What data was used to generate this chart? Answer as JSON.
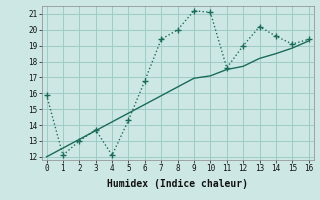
{
  "title": "",
  "xlabel": "Humidex (Indice chaleur)",
  "background_color": "#cde8e4",
  "grid_color": "#9fccc7",
  "line_color": "#1a6b5a",
  "x_data": [
    0,
    1,
    2,
    3,
    4,
    5,
    6,
    7,
    8,
    9,
    10,
    11,
    12,
    13,
    14,
    15,
    16
  ],
  "y_curve": [
    15.9,
    12.1,
    13.0,
    13.7,
    12.1,
    14.3,
    16.8,
    19.4,
    20.0,
    21.2,
    21.1,
    17.6,
    19.0,
    20.2,
    19.6,
    19.1,
    19.4
  ],
  "y_linear": [
    12.0,
    12.55,
    13.1,
    13.65,
    14.2,
    14.75,
    15.3,
    15.85,
    16.4,
    16.95,
    17.1,
    17.5,
    17.7,
    18.2,
    18.5,
    18.85,
    19.3
  ],
  "xlim": [
    -0.3,
    16.3
  ],
  "ylim": [
    11.8,
    21.5
  ],
  "yticks": [
    12,
    13,
    14,
    15,
    16,
    17,
    18,
    19,
    20,
    21
  ],
  "xticks": [
    0,
    1,
    2,
    3,
    4,
    5,
    6,
    7,
    8,
    9,
    10,
    11,
    12,
    13,
    14,
    15,
    16
  ],
  "tick_fontsize": 5.5,
  "xlabel_fontsize": 7
}
